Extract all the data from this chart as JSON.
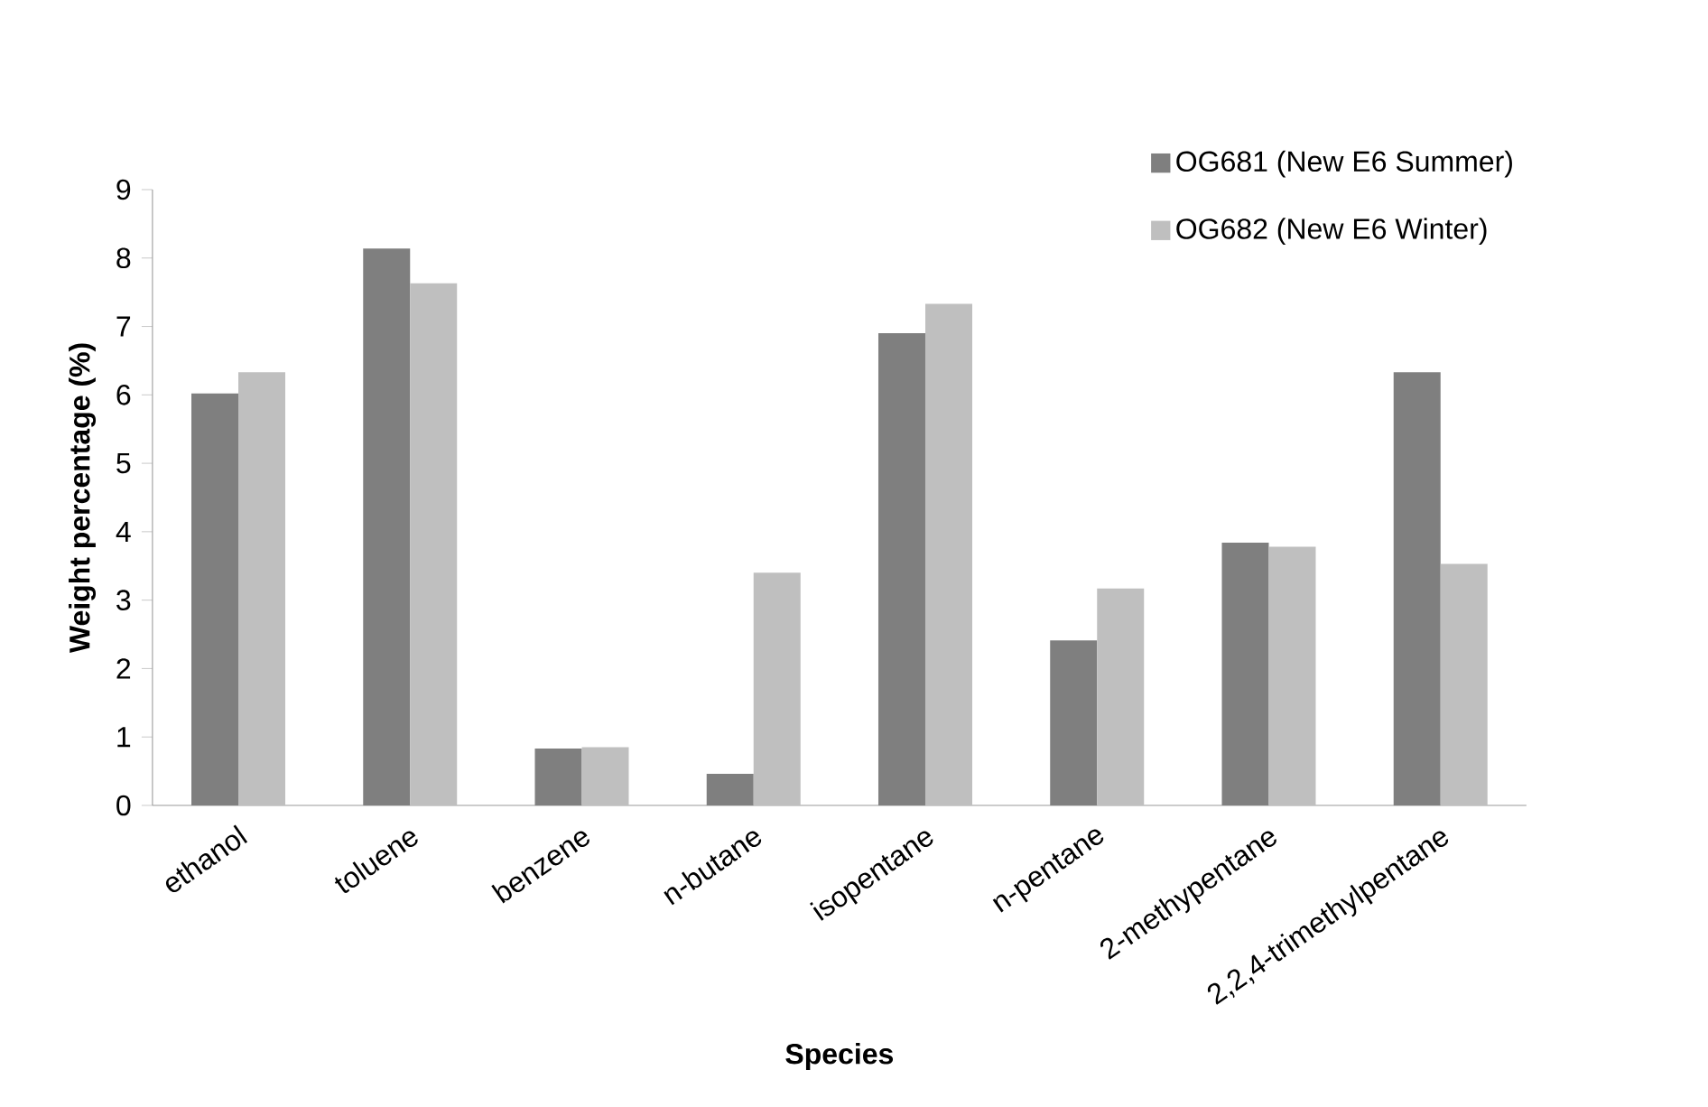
{
  "chart_data": {
    "type": "bar",
    "xlabel": "Species",
    "ylabel": "Weight percentage (%)",
    "categories": [
      "ethanol",
      "toluene",
      "benzene",
      "n-butane",
      "isopentane",
      "n-pentane",
      "2-methypentane",
      "2,2,4-trimethylpentane"
    ],
    "series": [
      {
        "name": "OG681 (New E6 Summer)",
        "color": "#7f7f7f",
        "values": [
          6.02,
          8.14,
          0.83,
          0.46,
          6.9,
          2.41,
          3.84,
          6.33
        ]
      },
      {
        "name": "OG682 (New E6 Winter)",
        "color": "#bfbfbf",
        "values": [
          6.33,
          7.63,
          0.85,
          3.4,
          7.33,
          3.17,
          3.78,
          3.53
        ]
      }
    ],
    "ylim": [
      0,
      9
    ],
    "yticks": [
      0,
      1,
      2,
      3,
      4,
      5,
      6,
      7,
      8,
      9
    ],
    "grid": false,
    "legend": "top right"
  }
}
